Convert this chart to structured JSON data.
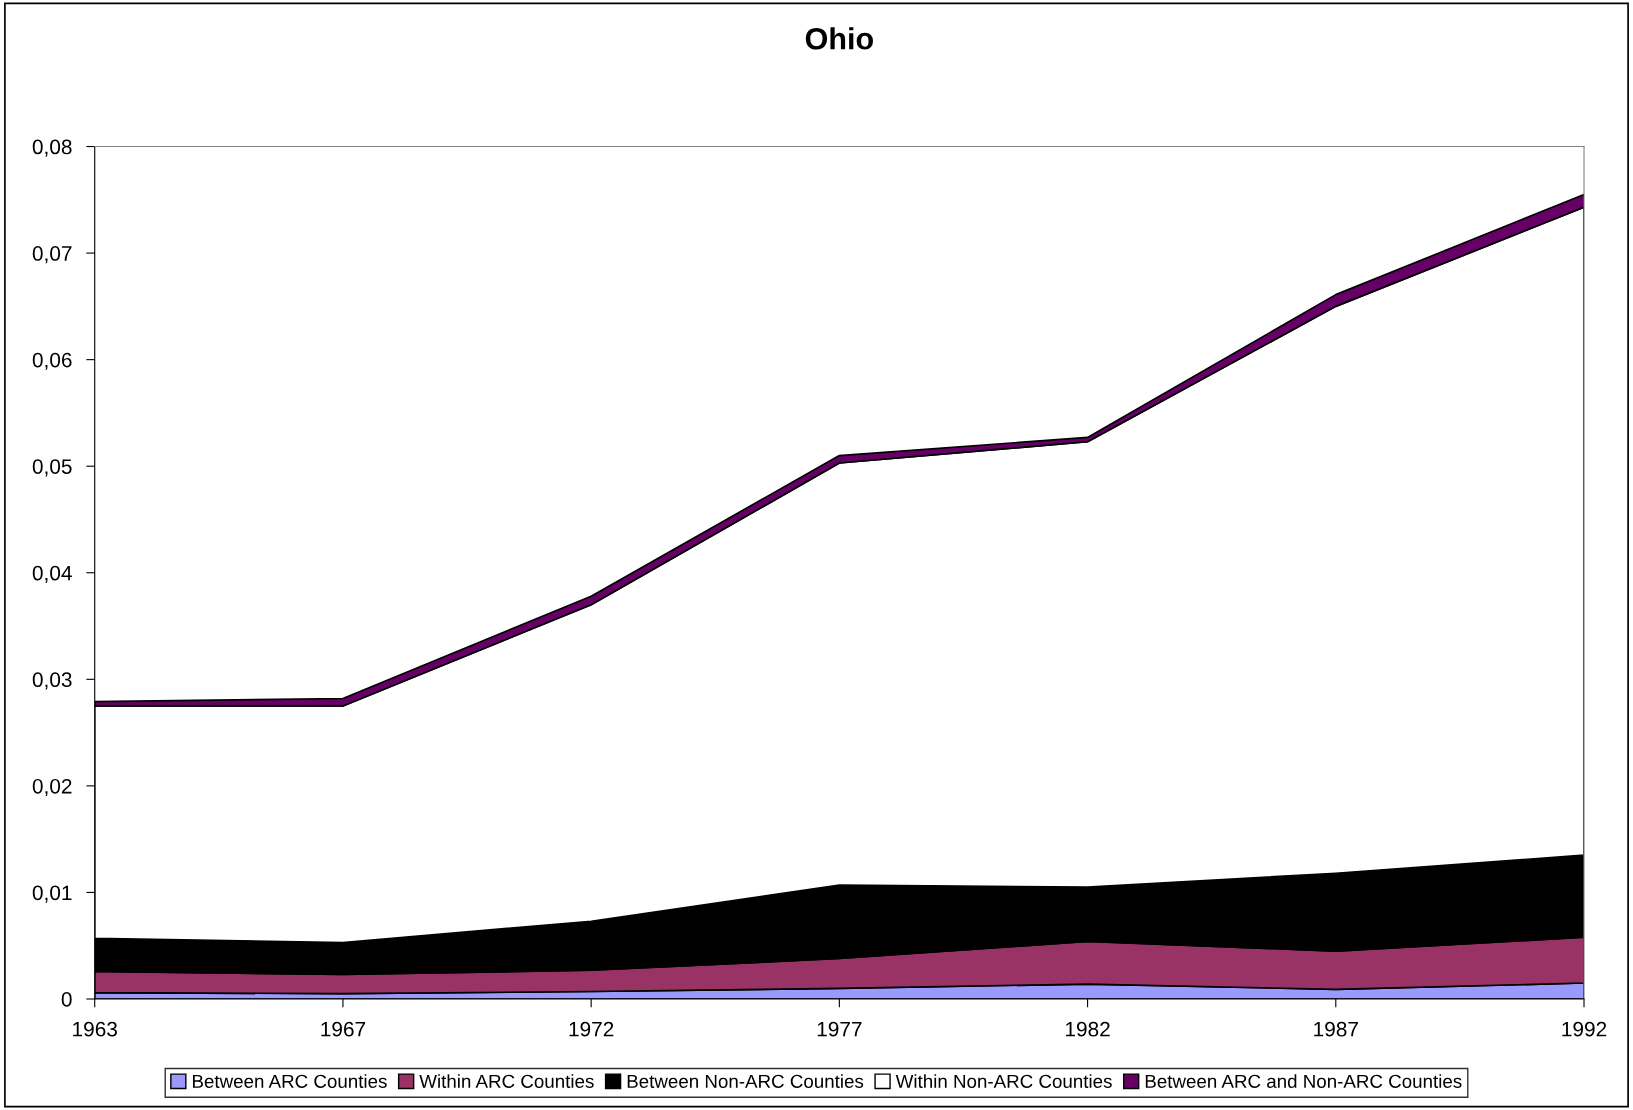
{
  "chart_data": {
    "type": "area",
    "title": "Ohio",
    "stacked": true,
    "categories": [
      "1963",
      "1967",
      "1972",
      "1977",
      "1982",
      "1987",
      "1992"
    ],
    "series": [
      {
        "name": "Between ARC Counties",
        "color": "#9999ff",
        "values": [
          0.0006,
          0.0005,
          0.0007,
          0.001,
          0.0014,
          0.0009,
          0.0015
        ]
      },
      {
        "name": "Within ARC Counties",
        "color": "#993366",
        "values": [
          0.002,
          0.0018,
          0.002,
          0.0028,
          0.004,
          0.0036,
          0.0043
        ]
      },
      {
        "name": "Between Non-ARC Counties",
        "color": "#000000",
        "values": [
          0.0031,
          0.003,
          0.0046,
          0.0069,
          0.0051,
          0.0073,
          0.0077
        ]
      },
      {
        "name": "Within Non-ARC Counties",
        "color": "#ffffff",
        "values": [
          0.0218,
          0.0222,
          0.0297,
          0.0396,
          0.0418,
          0.0532,
          0.0608
        ]
      },
      {
        "name": "Between ARC and Non-ARC Counties",
        "color": "#660066",
        "values": [
          0.0004,
          0.0007,
          0.0008,
          0.0007,
          0.0004,
          0.0011,
          0.0012
        ]
      }
    ],
    "ylim": [
      0,
      0.08
    ],
    "yticks": [
      {
        "value": 0,
        "label": "0"
      },
      {
        "value": 0.01,
        "label": "0,01"
      },
      {
        "value": 0.02,
        "label": "0,02"
      },
      {
        "value": 0.03,
        "label": "0,03"
      },
      {
        "value": 0.04,
        "label": "0,04"
      },
      {
        "value": 0.05,
        "label": "0,05"
      },
      {
        "value": 0.06,
        "label": "0,06"
      },
      {
        "value": 0.07,
        "label": "0,07"
      },
      {
        "value": 0.08,
        "label": "0,08"
      }
    ],
    "grid": false,
    "legend": "bottom"
  }
}
